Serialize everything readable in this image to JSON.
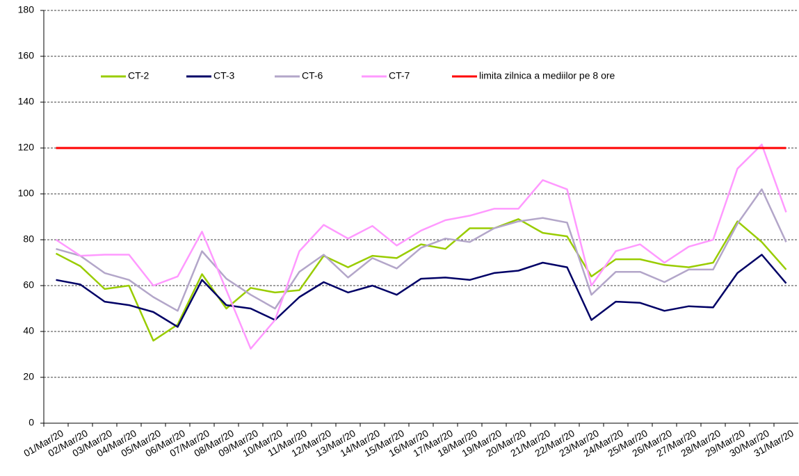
{
  "chart_data": {
    "type": "line",
    "categories": [
      "01/Mar/20",
      "02/Mar/20",
      "03/Mar/20",
      "04/Mar/20",
      "05/Mar/20",
      "06/Mar/20",
      "07/Mar/20",
      "08/Mar/20",
      "09/Mar/20",
      "10/Mar/20",
      "11/Mar/20",
      "12/Mar/20",
      "13/Mar/20",
      "14/Mar/20",
      "15/Mar/20",
      "16/Mar/20",
      "17/Mar/20",
      "18/Mar/20",
      "19/Mar/20",
      "20/Mar/20",
      "21/Mar/20",
      "22/Mar/20",
      "23/Mar/20",
      "24/Mar/20",
      "25/Mar/20",
      "26/Mar/20",
      "27/Mar/20",
      "28/Mar/20",
      "29/Mar/20",
      "30/Mar/20",
      "31/Mar/20"
    ],
    "series": [
      {
        "name": "CT-2",
        "color": "#99cc00",
        "values": [
          74,
          68.5,
          58.5,
          60,
          36,
          43,
          65,
          50,
          59,
          57,
          58,
          73,
          68,
          73,
          72,
          78,
          76,
          85,
          85,
          89,
          83,
          81.5,
          64,
          71.5,
          71.5,
          69,
          68,
          70,
          88,
          79,
          67
        ]
      },
      {
        "name": "CT-3",
        "color": "#000066",
        "values": [
          62.5,
          60.5,
          53,
          51.5,
          48.5,
          42,
          62.5,
          51.5,
          50,
          45,
          55,
          61.5,
          57,
          60,
          56,
          63,
          63.5,
          62.5,
          65.5,
          66.5,
          70,
          68,
          45,
          53,
          52.5,
          49,
          51,
          50.5,
          65.5,
          73.5,
          61
        ]
      },
      {
        "name": "CT-6",
        "color": "#b3a6c9",
        "values": [
          76,
          73,
          65.5,
          62.5,
          55,
          49,
          75,
          63,
          56,
          50,
          66,
          73.5,
          63.5,
          72,
          67.5,
          76.5,
          80.5,
          79,
          85,
          88,
          89.5,
          87.5,
          56,
          66,
          66,
          61.5,
          67,
          67,
          87,
          102,
          79
        ]
      },
      {
        "name": "CT-7",
        "color": "#ff99ff",
        "values": [
          80,
          73,
          73.5,
          73.5,
          60,
          64,
          83.5,
          58,
          32.5,
          45,
          75,
          86.5,
          80.5,
          86,
          77.5,
          84,
          88.5,
          90.5,
          93.5,
          93.5,
          106,
          102,
          60,
          75,
          78,
          70,
          77,
          80,
          111,
          121.5,
          92
        ]
      },
      {
        "name": "limita zilnica a mediilor pe 8 ore",
        "color": "#ff0000",
        "values": [
          120,
          120,
          120,
          120,
          120,
          120,
          120,
          120,
          120,
          120,
          120,
          120,
          120,
          120,
          120,
          120,
          120,
          120,
          120,
          120,
          120,
          120,
          120,
          120,
          120,
          120,
          120,
          120,
          120,
          120,
          120
        ]
      }
    ],
    "ylim": [
      0,
      180
    ],
    "yticks": [
      0,
      20,
      40,
      60,
      80,
      100,
      120,
      140,
      160,
      180
    ],
    "grid": true,
    "legend": "top"
  }
}
